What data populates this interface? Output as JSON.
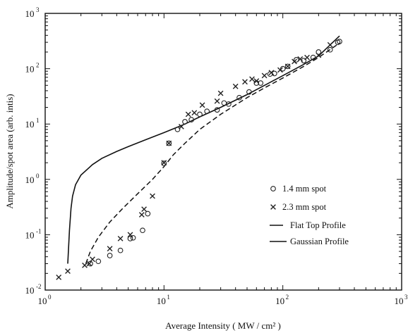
{
  "chart_data": {
    "type": "scatter",
    "xlabel": "Average Intensity  ( MW / cm² )",
    "ylabel": "Amplitude/spot area (arb. intis)",
    "x_scale": "log",
    "y_scale": "log",
    "xlim": [
      1,
      1000
    ],
    "ylim": [
      0.01,
      1000
    ],
    "grid": false,
    "legend_position": "lower-right",
    "x_ticks": [
      {
        "base": "10",
        "exp": "0"
      },
      {
        "base": "10",
        "exp": "1"
      },
      {
        "base": "10",
        "exp": "2"
      },
      {
        "base": "10",
        "exp": "3"
      }
    ],
    "y_ticks": [
      {
        "base": "10",
        "exp": "-2"
      },
      {
        "base": "10",
        "exp": "-1"
      },
      {
        "base": "10",
        "exp": "0"
      },
      {
        "base": "10",
        "exp": "1"
      },
      {
        "base": "10",
        "exp": "2"
      },
      {
        "base": "10",
        "exp": "3"
      }
    ],
    "series": [
      {
        "name": "1.4 mm spot",
        "marker": "o",
        "legend_symbol": "o",
        "points": [
          [
            2.4,
            0.03
          ],
          [
            2.8,
            0.033
          ],
          [
            3.5,
            0.042
          ],
          [
            4.3,
            0.052
          ],
          [
            5.2,
            0.085
          ],
          [
            5.5,
            0.088
          ],
          [
            6.6,
            0.12
          ],
          [
            7.3,
            0.24
          ],
          [
            10,
            1.95
          ],
          [
            11,
            4.5
          ],
          [
            13,
            8
          ],
          [
            15,
            11
          ],
          [
            17,
            12
          ],
          [
            20,
            15
          ],
          [
            23,
            17
          ],
          [
            28,
            18
          ],
          [
            32,
            24
          ],
          [
            35,
            23
          ],
          [
            43,
            30
          ],
          [
            52,
            38
          ],
          [
            60,
            55
          ],
          [
            65,
            55
          ],
          [
            78,
            80
          ],
          [
            85,
            82
          ],
          [
            100,
            100
          ],
          [
            110,
            110
          ],
          [
            130,
            145
          ],
          [
            150,
            140
          ],
          [
            180,
            160
          ],
          [
            200,
            200
          ],
          [
            250,
            220
          ],
          [
            290,
            300
          ],
          [
            300,
            310
          ]
        ]
      },
      {
        "name": "2.3 mm spot",
        "marker": "x",
        "legend_symbol": "x",
        "points": [
          [
            1.3,
            0.017
          ],
          [
            1.55,
            0.022
          ],
          [
            2.15,
            0.028
          ],
          [
            2.35,
            0.03
          ],
          [
            2.5,
            0.036
          ],
          [
            3.5,
            0.056
          ],
          [
            4.3,
            0.085
          ],
          [
            5.2,
            0.1
          ],
          [
            6.5,
            0.23
          ],
          [
            6.8,
            0.29
          ],
          [
            8,
            0.5
          ],
          [
            10,
            2
          ],
          [
            11,
            4.5
          ],
          [
            14,
            9
          ],
          [
            16,
            15
          ],
          [
            18,
            16
          ],
          [
            21,
            22
          ],
          [
            28,
            26
          ],
          [
            30,
            36
          ],
          [
            40,
            48
          ],
          [
            48,
            58
          ],
          [
            55,
            65
          ],
          [
            60,
            60
          ],
          [
            70,
            75
          ],
          [
            80,
            85
          ],
          [
            95,
            95
          ],
          [
            110,
            110
          ],
          [
            125,
            135
          ],
          [
            140,
            150
          ],
          [
            160,
            160
          ],
          [
            200,
            175
          ],
          [
            250,
            270
          ]
        ]
      },
      {
        "name": "Flat Top Profile",
        "style": "solid",
        "legend_symbol": "solid",
        "points": [
          [
            1.55,
            0.03
          ],
          [
            1.6,
            0.12
          ],
          [
            1.65,
            0.3
          ],
          [
            1.7,
            0.5
          ],
          [
            1.8,
            0.8
          ],
          [
            2,
            1.2
          ],
          [
            2.5,
            1.85
          ],
          [
            3,
            2.4
          ],
          [
            4,
            3.2
          ],
          [
            5,
            3.9
          ],
          [
            7,
            5.2
          ],
          [
            10,
            7
          ],
          [
            15,
            10
          ],
          [
            20,
            13.5
          ],
          [
            30,
            20
          ],
          [
            50,
            34
          ],
          [
            70,
            50
          ],
          [
            100,
            75
          ],
          [
            150,
            120
          ],
          [
            200,
            170
          ],
          [
            300,
            390
          ]
        ]
      },
      {
        "name": "Gaussian Profile",
        "style": "dashed",
        "legend_symbol": "dashed",
        "points": [
          [
            2.2,
            0.03
          ],
          [
            2.4,
            0.05
          ],
          [
            2.8,
            0.09
          ],
          [
            3.5,
            0.17
          ],
          [
            4.5,
            0.3
          ],
          [
            6,
            0.55
          ],
          [
            8,
            1
          ],
          [
            10,
            1.7
          ],
          [
            12,
            2.8
          ],
          [
            15,
            4.5
          ],
          [
            20,
            8
          ],
          [
            30,
            15
          ],
          [
            50,
            30
          ],
          [
            70,
            45
          ],
          [
            100,
            68
          ],
          [
            150,
            110
          ],
          [
            200,
            160
          ],
          [
            300,
            290
          ]
        ]
      }
    ]
  }
}
